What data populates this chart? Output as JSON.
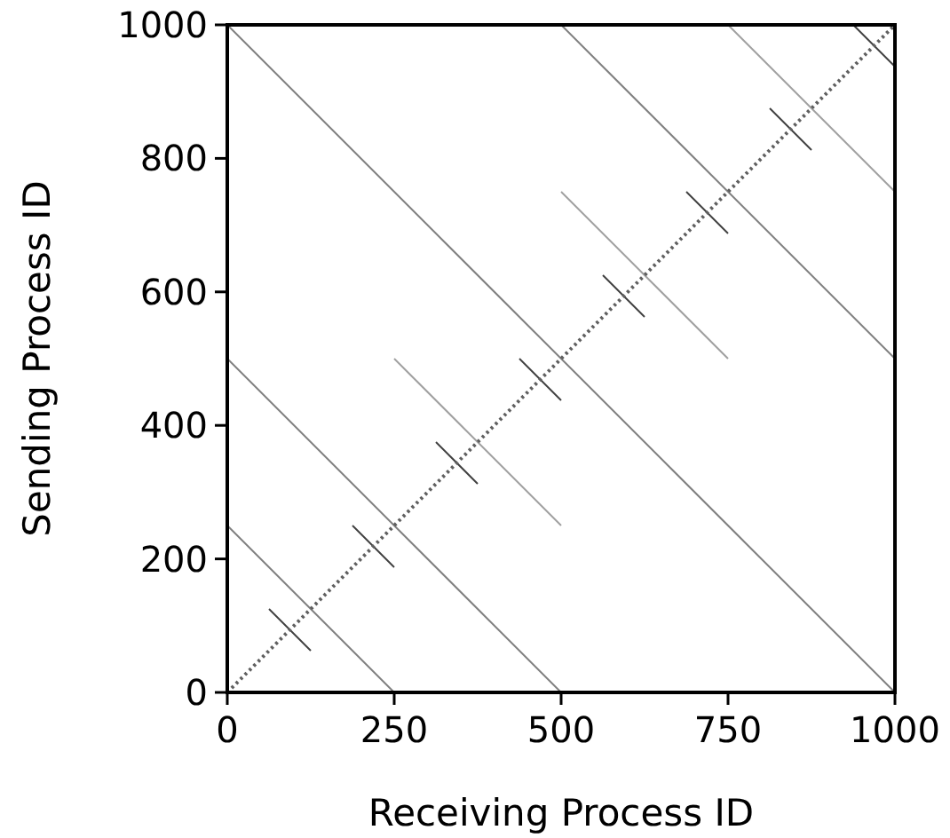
{
  "chart_data": {
    "type": "line",
    "xlabel": "Receiving Process ID",
    "ylabel": "Sending Process ID",
    "xlim": [
      0,
      1000
    ],
    "ylim": [
      0,
      1000
    ],
    "xticks": [
      0,
      250,
      500,
      750,
      1000
    ],
    "yticks": [
      0,
      200,
      400,
      600,
      800,
      1000
    ],
    "series": [
      {
        "color": "#808080",
        "x": [
          0,
          1000
        ],
        "values": [
          1000,
          0
        ]
      },
      {
        "color": "#808080",
        "x": [
          0,
          500
        ],
        "values": [
          500,
          0
        ]
      },
      {
        "color": "#808080",
        "x": [
          0,
          250
        ],
        "values": [
          250,
          0
        ]
      },
      {
        "color": "#a0a0a0",
        "x": [
          250,
          500
        ],
        "values": [
          500,
          250
        ]
      },
      {
        "color": "#a0a0a0",
        "x": [
          500,
          750
        ],
        "values": [
          750,
          500
        ]
      },
      {
        "color": "#808080",
        "x": [
          500,
          1000
        ],
        "values": [
          1000,
          500
        ]
      },
      {
        "color": "#a0a0a0",
        "x": [
          750,
          1000
        ],
        "values": [
          1000,
          750
        ]
      },
      {
        "color": "#404040",
        "x": [
          62.5,
          125
        ],
        "values": [
          125,
          62.5
        ]
      },
      {
        "color": "#404040",
        "x": [
          187.5,
          250
        ],
        "values": [
          250,
          187.5
        ]
      },
      {
        "color": "#404040",
        "x": [
          312.5,
          375
        ],
        "values": [
          375,
          312.5
        ]
      },
      {
        "color": "#404040",
        "x": [
          437.5,
          500
        ],
        "values": [
          500,
          437.5
        ]
      },
      {
        "color": "#404040",
        "x": [
          562.5,
          625
        ],
        "values": [
          625,
          562.5
        ]
      },
      {
        "color": "#404040",
        "x": [
          687.5,
          750
        ],
        "values": [
          750,
          687.5
        ]
      },
      {
        "color": "#404040",
        "x": [
          812.5,
          875
        ],
        "values": [
          875,
          812.5
        ]
      },
      {
        "color": "#404040",
        "x": [
          937.5,
          1000
        ],
        "values": [
          1000,
          937.5
        ]
      },
      {
        "color": "#606060",
        "x": [
          0,
          1000
        ],
        "values": [
          0,
          1000
        ],
        "line_style": "dotted"
      }
    ]
  }
}
